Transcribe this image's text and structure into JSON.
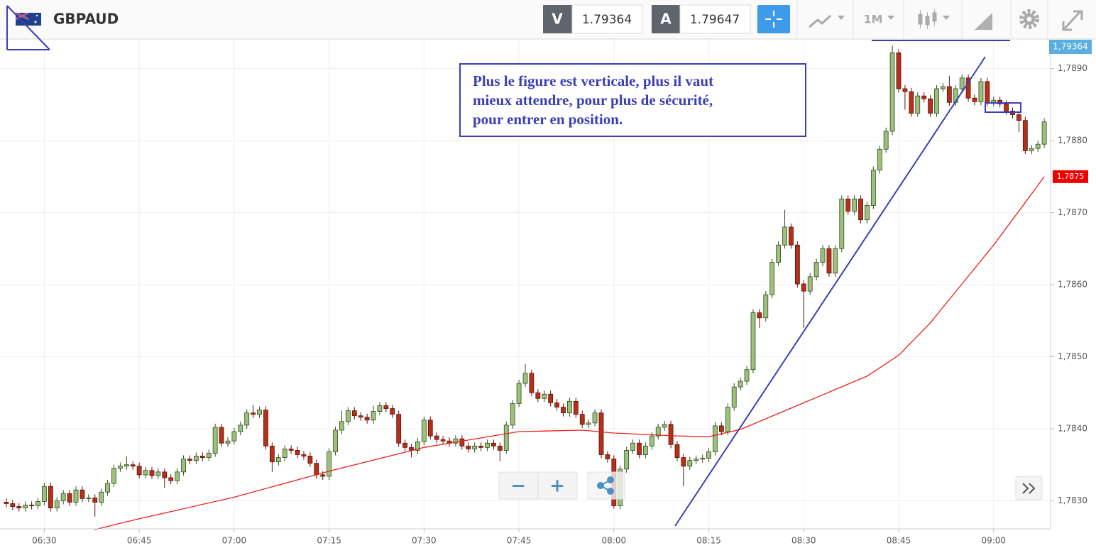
{
  "toolbar": {
    "symbol": "GBPAUD",
    "bid_label": "V",
    "bid": "1.79364",
    "ask_label": "A",
    "ask": "1.79647",
    "timeframe": "1M"
  },
  "zoom": {
    "minus": "−",
    "plus": "+"
  },
  "chart_data": {
    "type": "candlestick",
    "annotation": [
      "Plus le figure est verticale, plus il vaut",
      "mieux attendre, pour plus de sécurité,",
      "pour entrer en position."
    ],
    "x": [
      "06:24",
      "06:25",
      "06:26",
      "06:27",
      "06:28",
      "06:29",
      "06:30",
      "06:31",
      "06:32",
      "06:33",
      "06:34",
      "06:35",
      "06:36",
      "06:37",
      "06:38",
      "06:39",
      "06:40",
      "06:41",
      "06:42",
      "06:43",
      "06:44",
      "06:45",
      "06:46",
      "06:47",
      "06:48",
      "06:49",
      "06:50",
      "06:51",
      "06:52",
      "06:53",
      "06:54",
      "06:55",
      "06:56",
      "06:57",
      "06:58",
      "06:59",
      "07:00",
      "07:01",
      "07:02",
      "07:03",
      "07:04",
      "07:05",
      "07:06",
      "07:07",
      "07:08",
      "07:09",
      "07:10",
      "07:11",
      "07:12",
      "07:13",
      "07:14",
      "07:15",
      "07:16",
      "07:17",
      "07:18",
      "07:19",
      "07:20",
      "07:21",
      "07:22",
      "07:23",
      "07:24",
      "07:25",
      "07:26",
      "07:27",
      "07:28",
      "07:29",
      "07:30",
      "07:31",
      "07:32",
      "07:33",
      "07:34",
      "07:35",
      "07:36",
      "07:37",
      "07:38",
      "07:39",
      "07:40",
      "07:41",
      "07:42",
      "07:43",
      "07:44",
      "07:45",
      "07:46",
      "07:47",
      "07:48",
      "07:49",
      "07:50",
      "07:51",
      "07:52",
      "07:53",
      "07:54",
      "07:55",
      "07:56",
      "07:57",
      "07:58",
      "07:59",
      "08:00",
      "08:01",
      "08:02",
      "08:03",
      "08:04",
      "08:05",
      "08:06",
      "08:07",
      "08:08",
      "08:09",
      "08:10",
      "08:11",
      "08:12",
      "08:13",
      "08:14",
      "08:15",
      "08:16",
      "08:17",
      "08:18",
      "08:19",
      "08:20",
      "08:21",
      "08:22",
      "08:23",
      "08:24",
      "08:25",
      "08:26",
      "08:27",
      "08:28",
      "08:29",
      "08:30",
      "08:31",
      "08:32",
      "08:33",
      "08:34",
      "08:35",
      "08:36",
      "08:37",
      "08:38",
      "08:39",
      "08:40",
      "08:41",
      "08:42",
      "08:43",
      "08:44",
      "08:45",
      "08:46",
      "08:47",
      "08:48",
      "08:49",
      "08:50",
      "08:51",
      "08:52",
      "08:53",
      "08:54",
      "08:55",
      "08:56",
      "08:57",
      "08:58",
      "08:59",
      "09:00",
      "09:01",
      "09:02",
      "09:03",
      "09:04",
      "09:05",
      "09:06",
      "09:07",
      "09:08"
    ],
    "open": [
      1.78298,
      1.78296,
      1.78292,
      1.7829,
      1.78294,
      1.78293,
      1.78299,
      1.7832,
      1.7829,
      1.783,
      1.7831,
      1.78298,
      1.78315,
      1.78303,
      1.78304,
      1.78298,
      1.78312,
      1.78324,
      1.78345,
      1.78348,
      1.7835,
      1.78348,
      1.78336,
      1.78342,
      1.78335,
      1.7834,
      1.78332,
      1.78328,
      1.7834,
      1.78358,
      1.78356,
      1.78362,
      1.7836,
      1.78366,
      1.78402,
      1.7838,
      1.78383,
      1.78396,
      1.78405,
      1.78422,
      1.7842,
      1.78426,
      1.78376,
      1.78354,
      1.7836,
      1.78372,
      1.7837,
      1.78364,
      1.78362,
      1.78352,
      1.78336,
      1.78334,
      1.78368,
      1.78398,
      1.7841,
      1.78425,
      1.78418,
      1.78416,
      1.78412,
      1.78424,
      1.78432,
      1.78428,
      1.7842,
      1.7838,
      1.78374,
      1.7837,
      1.78382,
      1.78412,
      1.7839,
      1.78385,
      1.78383,
      1.7838,
      1.78386,
      1.78376,
      1.78372,
      1.78376,
      1.78374,
      1.7838,
      1.78376,
      1.7837,
      1.78405,
      1.78435,
      1.78463,
      1.78477,
      1.7845,
      1.78442,
      1.78448,
      1.78436,
      1.7843,
      1.78422,
      1.78438,
      1.7842,
      1.78406,
      1.78408,
      1.78422,
      1.78364,
      1.78358,
      1.78293,
      1.78344,
      1.7837,
      1.7838,
      1.78364,
      1.78376,
      1.7839,
      1.78402,
      1.78406,
      1.78378,
      1.7836,
      1.78348,
      1.78356,
      1.78358,
      1.78359,
      1.78368,
      1.78404,
      1.78396,
      1.7843,
      1.78458,
      1.78466,
      1.78482,
      1.78561,
      1.78554,
      1.78586,
      1.78631,
      1.78655,
      1.7868,
      1.78655,
      1.78601,
      1.78591,
      1.78611,
      1.78631,
      1.7865,
      1.78616,
      1.7865,
      1.78719,
      1.78702,
      1.78719,
      1.7869,
      1.7871,
      1.78759,
      1.78788,
      1.78813,
      1.78922,
      1.78872,
      1.78868,
      1.78838,
      1.78862,
      1.78858,
      1.78838,
      1.78872,
      1.78875,
      1.78853,
      1.78872,
      1.78887,
      1.78859,
      1.78854,
      1.78882,
      1.78853,
      1.78856,
      1.78851,
      1.78841,
      1.78836,
      1.78828,
      1.78786,
      1.78789,
      1.78795
    ],
    "high": [
      1.78303,
      1.78301,
      1.78297,
      1.78299,
      1.78299,
      1.78304,
      1.78325,
      1.78325,
      1.78305,
      1.78315,
      1.78315,
      1.7832,
      1.7832,
      1.78309,
      1.78309,
      1.78317,
      1.78329,
      1.7835,
      1.78353,
      1.78362,
      1.78355,
      1.78353,
      1.78347,
      1.78347,
      1.78345,
      1.78345,
      1.78337,
      1.78345,
      1.78363,
      1.78363,
      1.78367,
      1.78367,
      1.78371,
      1.78407,
      1.78407,
      1.78388,
      1.78401,
      1.7841,
      1.78427,
      1.78433,
      1.78431,
      1.78431,
      1.78381,
      1.78365,
      1.78377,
      1.78377,
      1.78375,
      1.78369,
      1.78367,
      1.78357,
      1.78341,
      1.78373,
      1.78403,
      1.78425,
      1.7843,
      1.7843,
      1.78423,
      1.78421,
      1.78432,
      1.78437,
      1.78437,
      1.78433,
      1.78425,
      1.78385,
      1.78379,
      1.78387,
      1.78417,
      1.78417,
      1.78395,
      1.7839,
      1.78388,
      1.78391,
      1.78391,
      1.78381,
      1.78381,
      1.78381,
      1.78385,
      1.78385,
      1.78381,
      1.7841,
      1.7844,
      1.78468,
      1.7849,
      1.78482,
      1.78455,
      1.78453,
      1.78453,
      1.78441,
      1.78435,
      1.78443,
      1.78443,
      1.78425,
      1.78413,
      1.78427,
      1.78427,
      1.78369,
      1.78363,
      1.78349,
      1.78375,
      1.78385,
      1.78385,
      1.78381,
      1.78395,
      1.78407,
      1.78411,
      1.78411,
      1.78383,
      1.78365,
      1.78361,
      1.78363,
      1.78364,
      1.78373,
      1.78409,
      1.78409,
      1.78435,
      1.78463,
      1.78471,
      1.78487,
      1.78566,
      1.78566,
      1.78591,
      1.78636,
      1.7866,
      1.78704,
      1.78685,
      1.7866,
      1.78606,
      1.78616,
      1.78636,
      1.78655,
      1.78655,
      1.78655,
      1.78724,
      1.78724,
      1.78724,
      1.78724,
      1.78715,
      1.78764,
      1.78793,
      1.78818,
      1.78932,
      1.78927,
      1.78877,
      1.78873,
      1.78867,
      1.78867,
      1.78863,
      1.78877,
      1.7888,
      1.7889,
      1.78877,
      1.78892,
      1.78892,
      1.78864,
      1.78887,
      1.78887,
      1.78861,
      1.78861,
      1.78856,
      1.78846,
      1.78841,
      1.78833,
      1.78794,
      1.788,
      1.78831
    ],
    "low": [
      1.78291,
      1.78287,
      1.78285,
      1.78285,
      1.78288,
      1.78288,
      1.78294,
      1.78285,
      1.78285,
      1.78295,
      1.78293,
      1.78293,
      1.78298,
      1.78298,
      1.78278,
      1.78293,
      1.78307,
      1.78319,
      1.7834,
      1.78343,
      1.78343,
      1.78331,
      1.78331,
      1.7833,
      1.7833,
      1.78318,
      1.78323,
      1.78323,
      1.78335,
      1.78351,
      1.78351,
      1.78355,
      1.78355,
      1.78361,
      1.78375,
      1.78375,
      1.78378,
      1.78391,
      1.784,
      1.78415,
      1.78415,
      1.78371,
      1.7834,
      1.78349,
      1.78355,
      1.78365,
      1.78359,
      1.78357,
      1.78347,
      1.78331,
      1.78329,
      1.78329,
      1.78363,
      1.78393,
      1.78405,
      1.78413,
      1.78411,
      1.78407,
      1.78407,
      1.78419,
      1.78423,
      1.78415,
      1.78375,
      1.78369,
      1.7836,
      1.78365,
      1.78377,
      1.78385,
      1.7838,
      1.78378,
      1.78375,
      1.78375,
      1.78371,
      1.78367,
      1.78367,
      1.78369,
      1.78369,
      1.78371,
      1.78355,
      1.78365,
      1.784,
      1.7843,
      1.78458,
      1.78445,
      1.78437,
      1.78437,
      1.78431,
      1.78425,
      1.78417,
      1.78417,
      1.78415,
      1.78401,
      1.78401,
      1.78403,
      1.78359,
      1.78353,
      1.78289,
      1.78288,
      1.78339,
      1.78365,
      1.78359,
      1.78359,
      1.78371,
      1.78385,
      1.78397,
      1.78373,
      1.78355,
      1.7832,
      1.78343,
      1.78351,
      1.78353,
      1.78354,
      1.78363,
      1.78391,
      1.78391,
      1.78425,
      1.78453,
      1.78461,
      1.78477,
      1.7854,
      1.78549,
      1.78581,
      1.78626,
      1.7865,
      1.7865,
      1.78596,
      1.7854,
      1.78586,
      1.78606,
      1.78626,
      1.78611,
      1.78611,
      1.78645,
      1.78697,
      1.78697,
      1.78685,
      1.78685,
      1.78705,
      1.78754,
      1.78783,
      1.78808,
      1.78867,
      1.78843,
      1.78833,
      1.78833,
      1.78853,
      1.78833,
      1.78833,
      1.78867,
      1.78848,
      1.78848,
      1.78867,
      1.78854,
      1.78849,
      1.78849,
      1.78848,
      1.78848,
      1.78846,
      1.78836,
      1.78831,
      1.78812,
      1.78781,
      1.78781,
      1.78784,
      1.7879
    ],
    "close": [
      1.78296,
      1.78292,
      1.7829,
      1.78294,
      1.78293,
      1.78299,
      1.7832,
      1.7829,
      1.783,
      1.7831,
      1.78298,
      1.78315,
      1.78303,
      1.78304,
      1.78298,
      1.78312,
      1.78324,
      1.78345,
      1.78348,
      1.7835,
      1.78348,
      1.78336,
      1.78342,
      1.78335,
      1.7834,
      1.78332,
      1.78328,
      1.7834,
      1.78358,
      1.78356,
      1.78362,
      1.7836,
      1.78366,
      1.78402,
      1.7838,
      1.78383,
      1.78396,
      1.78405,
      1.78422,
      1.7842,
      1.78426,
      1.78376,
      1.78354,
      1.7836,
      1.78372,
      1.7837,
      1.78364,
      1.78362,
      1.78352,
      1.78336,
      1.78334,
      1.78368,
      1.78398,
      1.7841,
      1.78425,
      1.78418,
      1.78416,
      1.78412,
      1.78424,
      1.78432,
      1.78428,
      1.7842,
      1.7838,
      1.78374,
      1.7837,
      1.78382,
      1.78412,
      1.7839,
      1.78385,
      1.78383,
      1.7838,
      1.78386,
      1.78376,
      1.78372,
      1.78376,
      1.78374,
      1.7838,
      1.78376,
      1.7837,
      1.78405,
      1.78435,
      1.78463,
      1.78477,
      1.7845,
      1.78442,
      1.78448,
      1.78436,
      1.7843,
      1.78422,
      1.78438,
      1.7842,
      1.78406,
      1.78408,
      1.78422,
      1.78364,
      1.78358,
      1.78293,
      1.78344,
      1.7837,
      1.7838,
      1.78364,
      1.78376,
      1.7839,
      1.78402,
      1.78406,
      1.78378,
      1.7836,
      1.78348,
      1.78356,
      1.78358,
      1.78359,
      1.78368,
      1.78404,
      1.78396,
      1.7843,
      1.78458,
      1.78466,
      1.78482,
      1.78561,
      1.78554,
      1.78586,
      1.78631,
      1.78655,
      1.7868,
      1.78655,
      1.78601,
      1.78591,
      1.78611,
      1.78631,
      1.7865,
      1.78616,
      1.7865,
      1.78719,
      1.78702,
      1.78719,
      1.7869,
      1.7871,
      1.78759,
      1.78788,
      1.78813,
      1.78922,
      1.78872,
      1.78868,
      1.78838,
      1.78862,
      1.78858,
      1.78838,
      1.78872,
      1.78875,
      1.78853,
      1.78872,
      1.78887,
      1.78859,
      1.78854,
      1.78882,
      1.78853,
      1.78856,
      1.78851,
      1.78841,
      1.78836,
      1.78828,
      1.78786,
      1.78789,
      1.78795,
      1.78826
    ],
    "up_color": "#9dc07c",
    "up_edge": "#2e4d1e",
    "down_color": "#b5301a",
    "down_edge": "#5a1208",
    "ma": {
      "color": "#e8211a",
      "x": [
        "06:38",
        "06:45",
        "07:00",
        "07:15",
        "07:30",
        "07:45",
        "07:55",
        "08:00",
        "08:10",
        "08:15",
        "08:20",
        "08:30",
        "08:40",
        "08:45",
        "08:50",
        "08:55",
        "09:00",
        "09:05",
        "09:08"
      ],
      "values": [
        1.7826,
        1.78275,
        1.78305,
        1.78341,
        1.78374,
        1.78396,
        1.78398,
        1.78394,
        1.7839,
        1.78389,
        1.78399,
        1.78436,
        1.78473,
        1.78502,
        1.78547,
        1.78601,
        1.78655,
        1.78714,
        1.7875
      ]
    },
    "ma_tag": {
      "value": 1.7875,
      "label": "1,7875"
    },
    "bid_tag": {
      "value": 1.79364,
      "label": "1,79364"
    },
    "xlim": [
      "06:23",
      "09:09"
    ],
    "xticks": [
      "06:30",
      "06:45",
      "07:00",
      "07:15",
      "07:30",
      "07:45",
      "08:00",
      "08:15",
      "08:30",
      "08:45",
      "09:00"
    ],
    "ylim": [
      1.78261,
      1.78941
    ],
    "yticks": [
      {
        "value": 1.783,
        "label": "1,7830"
      },
      {
        "value": 1.784,
        "label": "1,7840"
      },
      {
        "value": 1.785,
        "label": "1,7850"
      },
      {
        "value": 1.786,
        "label": "1,7860"
      },
      {
        "value": 1.787,
        "label": "1,7870"
      },
      {
        "value": 1.788,
        "label": "1,7880"
      },
      {
        "value": 1.789,
        "label": "1,7890"
      }
    ],
    "grid": true
  }
}
